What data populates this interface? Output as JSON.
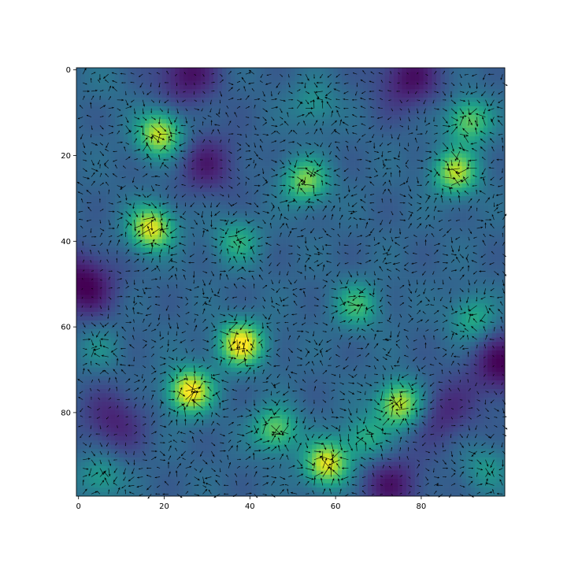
{
  "chart_data": {
    "type": "heatmap",
    "title": "",
    "xlabel": "",
    "ylabel": "",
    "xlim": [
      0,
      99
    ],
    "ylim": [
      99,
      0
    ],
    "y_axis_inverted": true,
    "grid": false,
    "colormap": "viridis",
    "overlay": "quiver",
    "arrow_color": "#000000",
    "x_ticks": [
      {
        "value": 0,
        "label": "0"
      },
      {
        "value": 20,
        "label": "20"
      },
      {
        "value": 40,
        "label": "40"
      },
      {
        "value": 60,
        "label": "60"
      },
      {
        "value": 80,
        "label": "80"
      }
    ],
    "y_ticks": [
      {
        "value": 0,
        "label": "0"
      },
      {
        "value": 20,
        "label": "20"
      },
      {
        "value": 40,
        "label": "40"
      },
      {
        "value": 60,
        "label": "60"
      },
      {
        "value": 80,
        "label": "80"
      }
    ],
    "peaks": [
      {
        "x": 19,
        "y": 15,
        "value": 0.92
      },
      {
        "x": 17,
        "y": 37,
        "value": 0.95
      },
      {
        "x": 37,
        "y": 40,
        "value": 0.6
      },
      {
        "x": 53,
        "y": 26,
        "value": 0.78
      },
      {
        "x": 55,
        "y": 8,
        "value": 0.5
      },
      {
        "x": 88,
        "y": 24,
        "value": 0.85
      },
      {
        "x": 91,
        "y": 12,
        "value": 0.75
      },
      {
        "x": 38,
        "y": 64,
        "value": 1.0
      },
      {
        "x": 26,
        "y": 75,
        "value": 1.0
      },
      {
        "x": 75,
        "y": 78,
        "value": 0.92
      },
      {
        "x": 58,
        "y": 92,
        "value": 0.95
      },
      {
        "x": 46,
        "y": 84,
        "value": 0.75
      },
      {
        "x": 67,
        "y": 86,
        "value": 0.6
      },
      {
        "x": 65,
        "y": 55,
        "value": 0.65
      },
      {
        "x": 92,
        "y": 58,
        "value": 0.6
      },
      {
        "x": 5,
        "y": 65,
        "value": 0.45
      },
      {
        "x": 5,
        "y": 95,
        "value": 0.55
      },
      {
        "x": 95,
        "y": 93,
        "value": 0.5
      },
      {
        "x": 7,
        "y": 3,
        "value": 0.35
      },
      {
        "x": 50,
        "y": 48,
        "value": 0.3
      }
    ],
    "troughs": [
      {
        "x": 1,
        "y": 50,
        "value": 0.0
      },
      {
        "x": 99,
        "y": 69,
        "value": 0.02
      },
      {
        "x": 25,
        "y": 1,
        "value": 0.05
      },
      {
        "x": 77,
        "y": 2,
        "value": 0.05
      },
      {
        "x": 30,
        "y": 22,
        "value": 0.1
      },
      {
        "x": 8,
        "y": 82,
        "value": 0.1
      },
      {
        "x": 73,
        "y": 97,
        "value": 0.08
      },
      {
        "x": 85,
        "y": 80,
        "value": 0.12
      }
    ]
  }
}
